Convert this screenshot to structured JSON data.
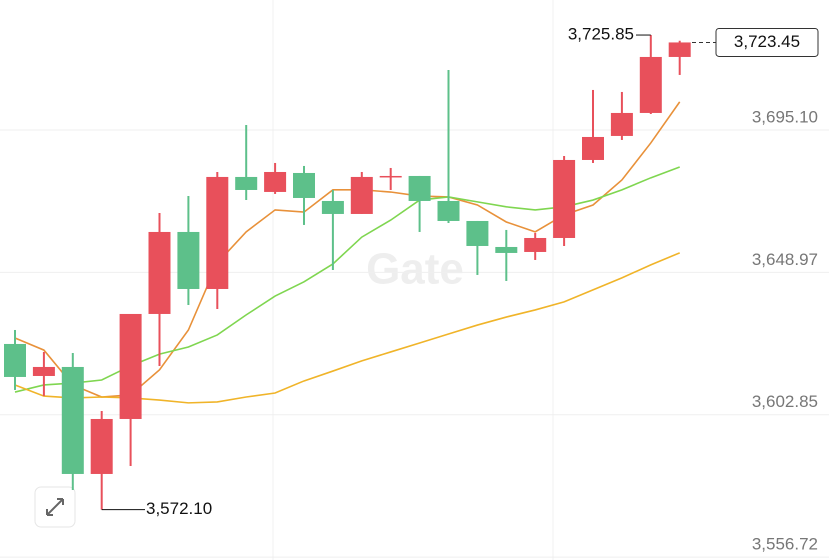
{
  "chart_data": {
    "type": "candlestick",
    "categories": [
      null,
      null,
      null,
      null,
      null,
      null,
      null,
      null,
      null,
      null,
      null,
      null,
      null,
      null,
      null,
      null,
      null,
      null,
      null,
      null,
      null,
      null,
      null,
      null
    ],
    "open": [
      3625.78,
      3615.41,
      3618.33,
      3583.67,
      3601.48,
      3635.5,
      3662.06,
      3643.59,
      3679.88,
      3675.02,
      3681.17,
      3672.1,
      3667.89,
      3679.88,
      3680.2,
      3672.1,
      3665.62,
      3657.2,
      3655.58,
      3660.11,
      3685.38,
      3693.16,
      3700.61,
      3718.75
    ],
    "high": [
      3630.31,
      3623.19,
      3622.86,
      3604.07,
      3635.5,
      3668.21,
      3673.72,
      3681.49,
      3696.72,
      3684.41,
      3683.44,
      3675.66,
      3681.49,
      3682.79,
      3680.2,
      3714.54,
      3665.62,
      3662.71,
      3661.73,
      3686.68,
      3708.06,
      3707.41,
      3725.85,
      3724.0
    ],
    "low": [
      3610.88,
      3608.93,
      3578.48,
      3572.1,
      3586.26,
      3618.65,
      3638.41,
      3637.12,
      3672.42,
      3674.37,
      3664.33,
      3649.75,
      3667.89,
      3675.66,
      3662.06,
      3664.97,
      3648.13,
      3646.19,
      3652.99,
      3657.52,
      3684.41,
      3691.86,
      3700.28,
      3712.92
    ],
    "close": [
      3615.09,
      3618.33,
      3583.67,
      3601.48,
      3635.5,
      3662.06,
      3643.59,
      3679.88,
      3675.66,
      3681.49,
      3673.07,
      3667.89,
      3679.88,
      3680.2,
      3672.1,
      3665.62,
      3657.52,
      3655.26,
      3660.11,
      3685.38,
      3692.83,
      3700.61,
      3718.75,
      3723.45
    ],
    "up_color": "#e8505b",
    "down_color": "#5dc08a",
    "series": [
      {
        "color": "#e8913a",
        "values": [
          3627.7,
          3623.8,
          3612.5,
          3608.6,
          3609.3,
          3617.4,
          3630.3,
          3652.0,
          3662.1,
          3669.2,
          3668.5,
          3675.7,
          3675.7,
          3675.0,
          3673.7,
          3673.4,
          3670.8,
          3665.3,
          3662.1,
          3667.6,
          3670.8,
          3678.9,
          3690.9,
          3704.2
        ]
      },
      {
        "color": "#7fd650",
        "values": [
          3610.2,
          3612.5,
          3613.1,
          3614.1,
          3618.7,
          3622.5,
          3624.8,
          3628.7,
          3635.2,
          3641.3,
          3645.9,
          3651.7,
          3660.4,
          3665.9,
          3672.4,
          3673.4,
          3671.8,
          3670.2,
          3669.2,
          3670.2,
          3672.4,
          3675.7,
          3679.6,
          3683.1
        ]
      },
      {
        "color": "#f0b429",
        "values": [
          3612.5,
          3608.9,
          3608.3,
          3608.6,
          3608.3,
          3607.6,
          3606.7,
          3607.0,
          3608.6,
          3609.9,
          3613.8,
          3617.0,
          3620.3,
          3623.2,
          3626.1,
          3629.0,
          3631.9,
          3634.5,
          3636.8,
          3639.4,
          3643.3,
          3647.2,
          3651.4,
          3655.3
        ]
      }
    ],
    "ylim": [
      3555.8,
      3737.2
    ],
    "yticks": [
      {
        "value": 3556.72,
        "label": "3,556.72"
      },
      {
        "value": 3602.85,
        "label": "3,602.85"
      },
      {
        "value": 3648.97,
        "label": "3,648.97"
      },
      {
        "value": 3695.1,
        "label": "3,695.10"
      }
    ],
    "grid": true,
    "high_label": "3,725.85",
    "low_label": "3,572.10",
    "last_price": {
      "value": 3723.45,
      "label": "3,723.45"
    },
    "watermark": "Gate"
  }
}
